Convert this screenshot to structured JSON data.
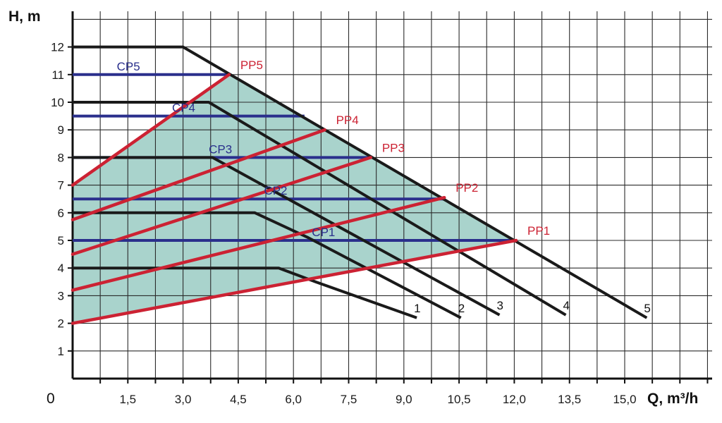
{
  "chart_data": {
    "type": "line",
    "xlabel": "Q, m³/h",
    "ylabel": "H, m",
    "origin_label": "0",
    "xlim": [
      0,
      16.5
    ],
    "ylim": [
      0,
      13
    ],
    "x_grid_step": 0.75,
    "y_grid_step": 1,
    "grid": true,
    "xticks": [
      {
        "value": 1.5,
        "label": "1,5"
      },
      {
        "value": 3.0,
        "label": "3,0"
      },
      {
        "value": 4.5,
        "label": "4,5"
      },
      {
        "value": 6.0,
        "label": "6,0"
      },
      {
        "value": 7.5,
        "label": "7,5"
      },
      {
        "value": 9.0,
        "label": "9,0"
      },
      {
        "value": 10.5,
        "label": "10,5"
      },
      {
        "value": 12.0,
        "label": "12,0"
      },
      {
        "value": 13.5,
        "label": "13,5"
      },
      {
        "value": 15.0,
        "label": "15,0"
      }
    ],
    "yticks": [
      {
        "value": 1,
        "label": "1"
      },
      {
        "value": 2,
        "label": "2"
      },
      {
        "value": 3,
        "label": "3"
      },
      {
        "value": 4,
        "label": "4"
      },
      {
        "value": 5,
        "label": "5"
      },
      {
        "value": 6,
        "label": "6"
      },
      {
        "value": 7,
        "label": "7"
      },
      {
        "value": 8,
        "label": "8"
      },
      {
        "value": 9,
        "label": "9"
      },
      {
        "value": 10,
        "label": "10"
      },
      {
        "value": 11,
        "label": "11"
      },
      {
        "value": 12,
        "label": "12"
      }
    ],
    "shaded_region": {
      "color": "#a9d3cc",
      "points": [
        [
          0,
          2
        ],
        [
          12.05,
          5
        ],
        [
          4.25,
          11
        ],
        [
          0,
          7
        ]
      ]
    },
    "pump_curves": [
      {
        "label": "1",
        "color": "#1a1a1a",
        "points": [
          [
            0,
            4
          ],
          [
            5.6,
            4
          ],
          [
            6.6,
            3.5
          ],
          [
            9.35,
            2.2
          ]
        ]
      },
      {
        "label": "2",
        "color": "#1a1a1a",
        "points": [
          [
            0,
            6
          ],
          [
            4.95,
            6
          ],
          [
            6.4,
            5.1
          ],
          [
            10.55,
            2.2
          ]
        ]
      },
      {
        "label": "3",
        "color": "#1a1a1a",
        "points": [
          [
            0,
            8
          ],
          [
            3.8,
            8
          ],
          [
            11.6,
            2.3
          ]
        ]
      },
      {
        "label": "4",
        "color": "#1a1a1a",
        "points": [
          [
            0,
            10
          ],
          [
            3.7,
            10
          ],
          [
            13.4,
            2.3
          ]
        ]
      },
      {
        "label": "5",
        "color": "#1a1a1a",
        "points": [
          [
            0,
            12
          ],
          [
            3.0,
            12
          ],
          [
            15.6,
            2.2
          ]
        ]
      }
    ],
    "constant_pressure_lines": [
      {
        "label": "CP1",
        "color": "#2a2f8c",
        "y": 5.0,
        "x_end": 12.05
      },
      {
        "label": "CP2",
        "color": "#2a2f8c",
        "y": 6.5,
        "x_end": 10.1
      },
      {
        "label": "CP3",
        "color": "#2a2f8c",
        "y": 8.0,
        "x_end": 8.1
      },
      {
        "label": "CP4",
        "color": "#2a2f8c",
        "y": 9.5,
        "x_end": 6.3
      },
      {
        "label": "CP5",
        "color": "#2a2f8c",
        "y": 11.0,
        "x_end": 4.25
      }
    ],
    "proportional_pressure_lines": [
      {
        "label": "PP1",
        "color": "#cc2233",
        "points": [
          [
            0,
            2.0
          ],
          [
            12.05,
            5.0
          ]
        ]
      },
      {
        "label": "PP2",
        "color": "#cc2233",
        "points": [
          [
            0,
            3.2
          ],
          [
            10.1,
            6.55
          ]
        ]
      },
      {
        "label": "PP3",
        "color": "#cc2233",
        "points": [
          [
            0,
            4.5
          ],
          [
            8.1,
            8.0
          ]
        ]
      },
      {
        "label": "PP4",
        "color": "#cc2233",
        "points": [
          [
            0,
            5.75
          ],
          [
            6.85,
            9.0
          ]
        ]
      },
      {
        "label": "PP5",
        "color": "#cc2233",
        "points": [
          [
            0,
            7.0
          ],
          [
            4.25,
            11.0
          ]
        ]
      }
    ]
  }
}
